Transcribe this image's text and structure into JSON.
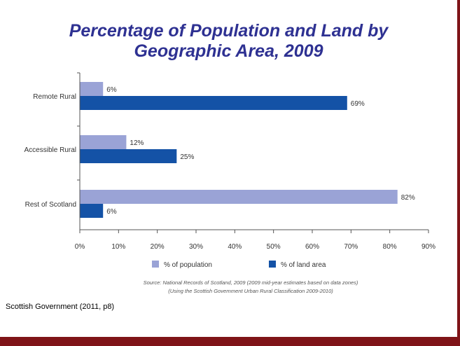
{
  "slide": {
    "title_line1": "Percentage of Population and Land by",
    "title_line2": "Geographic Area, 2009",
    "caption": "Scottish Government (2011, p8)"
  },
  "chart_data": {
    "type": "bar",
    "orientation": "horizontal",
    "title": "Percentage of Population and Land by Geographic Area, 2009",
    "categories": [
      "Remote Rural",
      "Accessible Rural",
      "Rest of Scotland"
    ],
    "series": [
      {
        "name": "% of population",
        "color": "#9aa3d6",
        "values": [
          6,
          12,
          82
        ],
        "labels": [
          "6%",
          "12%",
          "82%"
        ]
      },
      {
        "name": "% of land area",
        "color": "#1452a6",
        "values": [
          69,
          25,
          6
        ],
        "labels": [
          "69%",
          "25%",
          "6%"
        ]
      }
    ],
    "xlim": [
      0,
      90
    ],
    "xticks": [
      0,
      10,
      20,
      30,
      40,
      50,
      60,
      70,
      80,
      90
    ],
    "xtick_labels": [
      "0%",
      "10%",
      "20%",
      "30%",
      "40%",
      "50%",
      "60%",
      "70%",
      "80%",
      "90%"
    ],
    "grid": false,
    "legend": "bottom",
    "source_line1": "Source: National Records of Scotland, 2009 (2009 mid-year estimates based on data zones)",
    "source_line2": "(Using the Scottish Government Urban Rural Classification 2009-2010)"
  }
}
